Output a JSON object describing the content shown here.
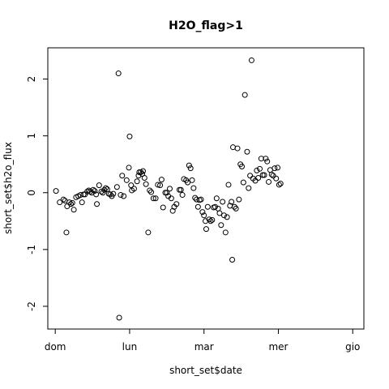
{
  "chart_data": {
    "type": "scatter",
    "title": "H2O_flag>1",
    "xlabel": "short_set$date",
    "ylabel": "short_set$h2o_flux",
    "xlim": [
      -0.1,
      4.15
    ],
    "ylim": [
      -2.4,
      2.55
    ],
    "x_ticks": [
      {
        "value": 0,
        "label": "dom"
      },
      {
        "value": 1,
        "label": "lun"
      },
      {
        "value": 2,
        "label": "mar"
      },
      {
        "value": 3,
        "label": "mer"
      },
      {
        "value": 4,
        "label": "gio"
      }
    ],
    "y_ticks": [
      {
        "value": -2,
        "label": "-2"
      },
      {
        "value": -1,
        "label": "-1"
      },
      {
        "value": 0,
        "label": "0"
      },
      {
        "value": 1,
        "label": "1"
      },
      {
        "value": 2,
        "label": "2"
      }
    ],
    "grid": false,
    "points": [
      [
        0.01,
        0.03
      ],
      [
        0.06,
        -0.17
      ],
      [
        0.11,
        -0.12
      ],
      [
        0.13,
        -0.14
      ],
      [
        0.15,
        -0.7
      ],
      [
        0.16,
        -0.24
      ],
      [
        0.19,
        -0.17
      ],
      [
        0.21,
        -0.2
      ],
      [
        0.23,
        -0.18
      ],
      [
        0.25,
        -0.3
      ],
      [
        0.28,
        -0.08
      ],
      [
        0.31,
        -0.06
      ],
      [
        0.34,
        -0.04
      ],
      [
        0.36,
        -0.17
      ],
      [
        0.38,
        -0.03
      ],
      [
        0.4,
        -0.03
      ],
      [
        0.43,
        0.02
      ],
      [
        0.45,
        0.04
      ],
      [
        0.47,
        0.02
      ],
      [
        0.49,
        0.0
      ],
      [
        0.51,
        0.05
      ],
      [
        0.53,
        0.03
      ],
      [
        0.55,
        -0.03
      ],
      [
        0.56,
        -0.2
      ],
      [
        0.59,
        0.13
      ],
      [
        0.62,
        0.02
      ],
      [
        0.64,
        0.0
      ],
      [
        0.66,
        0.05
      ],
      [
        0.68,
        0.08
      ],
      [
        0.7,
        0.06
      ],
      [
        0.72,
        -0.02
      ],
      [
        0.74,
        -0.03
      ],
      [
        0.76,
        -0.06
      ],
      [
        0.78,
        -0.02
      ],
      [
        0.83,
        0.1
      ],
      [
        0.85,
        2.1
      ],
      [
        0.86,
        -2.2
      ],
      [
        0.88,
        -0.04
      ],
      [
        0.9,
        0.3
      ],
      [
        0.92,
        -0.06
      ],
      [
        0.96,
        0.22
      ],
      [
        0.99,
        0.44
      ],
      [
        1.0,
        0.99
      ],
      [
        1.02,
        0.13
      ],
      [
        1.03,
        0.04
      ],
      [
        1.06,
        0.07
      ],
      [
        1.1,
        0.2
      ],
      [
        1.12,
        0.3
      ],
      [
        1.13,
        0.36
      ],
      [
        1.15,
        0.36
      ],
      [
        1.17,
        0.33
      ],
      [
        1.18,
        0.38
      ],
      [
        1.2,
        0.26
      ],
      [
        1.22,
        0.15
      ],
      [
        1.25,
        -0.7
      ],
      [
        1.27,
        0.04
      ],
      [
        1.29,
        0.01
      ],
      [
        1.32,
        -0.1
      ],
      [
        1.35,
        -0.1
      ],
      [
        1.38,
        0.14
      ],
      [
        1.41,
        0.13
      ],
      [
        1.43,
        0.23
      ],
      [
        1.45,
        -0.26
      ],
      [
        1.48,
        0.0
      ],
      [
        1.5,
        0.0
      ],
      [
        1.52,
        -0.06
      ],
      [
        1.54,
        0.07
      ],
      [
        1.56,
        -0.1
      ],
      [
        1.58,
        -0.32
      ],
      [
        1.6,
        -0.25
      ],
      [
        1.63,
        -0.2
      ],
      [
        1.67,
        0.05
      ],
      [
        1.69,
        0.05
      ],
      [
        1.71,
        -0.04
      ],
      [
        1.73,
        0.24
      ],
      [
        1.76,
        0.22
      ],
      [
        1.78,
        0.18
      ],
      [
        1.8,
        0.48
      ],
      [
        1.82,
        0.43
      ],
      [
        1.84,
        0.22
      ],
      [
        1.86,
        0.08
      ],
      [
        1.88,
        -0.09
      ],
      [
        1.9,
        -0.12
      ],
      [
        1.92,
        -0.25
      ],
      [
        1.94,
        -0.13
      ],
      [
        1.96,
        -0.12
      ],
      [
        1.98,
        -0.34
      ],
      [
        2.0,
        -0.4
      ],
      [
        2.02,
        -0.5
      ],
      [
        2.03,
        -0.64
      ],
      [
        2.05,
        -0.25
      ],
      [
        2.07,
        -0.47
      ],
      [
        2.09,
        -0.5
      ],
      [
        2.11,
        -0.48
      ],
      [
        2.13,
        -0.26
      ],
      [
        2.15,
        -0.25
      ],
      [
        2.17,
        -0.1
      ],
      [
        2.19,
        -0.28
      ],
      [
        2.21,
        -0.36
      ],
      [
        2.23,
        -0.57
      ],
      [
        2.25,
        -0.16
      ],
      [
        2.27,
        -0.4
      ],
      [
        2.29,
        -0.7
      ],
      [
        2.31,
        -0.43
      ],
      [
        2.33,
        0.14
      ],
      [
        2.35,
        -0.23
      ],
      [
        2.37,
        -0.16
      ],
      [
        2.38,
        -1.18
      ],
      [
        2.39,
        0.8
      ],
      [
        2.41,
        -0.25
      ],
      [
        2.43,
        -0.28
      ],
      [
        2.45,
        0.78
      ],
      [
        2.47,
        -0.12
      ],
      [
        2.49,
        0.5
      ],
      [
        2.51,
        0.46
      ],
      [
        2.53,
        0.18
      ],
      [
        2.55,
        1.72
      ],
      [
        2.58,
        0.72
      ],
      [
        2.6,
        0.08
      ],
      [
        2.62,
        0.3
      ],
      [
        2.64,
        2.33
      ],
      [
        2.66,
        0.25
      ],
      [
        2.69,
        0.21
      ],
      [
        2.71,
        0.39
      ],
      [
        2.73,
        0.26
      ],
      [
        2.75,
        0.42
      ],
      [
        2.77,
        0.6
      ],
      [
        2.79,
        0.31
      ],
      [
        2.81,
        0.31
      ],
      [
        2.83,
        0.6
      ],
      [
        2.85,
        0.55
      ],
      [
        2.87,
        0.19
      ],
      [
        2.89,
        0.4
      ],
      [
        2.91,
        0.32
      ],
      [
        2.93,
        0.3
      ],
      [
        2.95,
        0.43
      ],
      [
        2.97,
        0.25
      ],
      [
        2.99,
        0.44
      ],
      [
        3.01,
        0.14
      ],
      [
        3.03,
        0.16
      ]
    ]
  }
}
